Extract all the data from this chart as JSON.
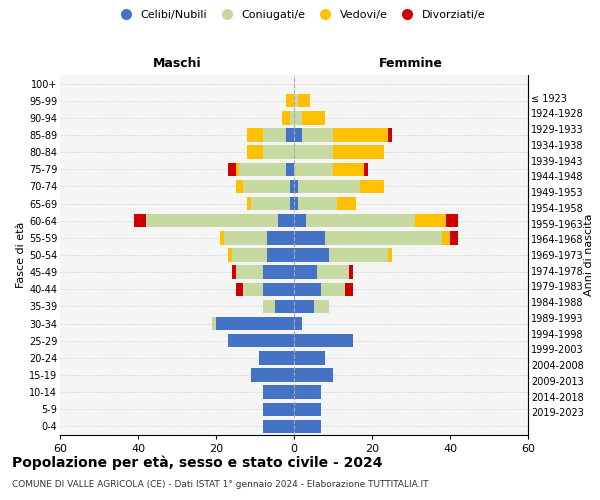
{
  "age_groups": [
    "0-4",
    "5-9",
    "10-14",
    "15-19",
    "20-24",
    "25-29",
    "30-34",
    "35-39",
    "40-44",
    "45-49",
    "50-54",
    "55-59",
    "60-64",
    "65-69",
    "70-74",
    "75-79",
    "80-84",
    "85-89",
    "90-94",
    "95-99",
    "100+"
  ],
  "birth_years": [
    "2019-2023",
    "2014-2018",
    "2009-2013",
    "2004-2008",
    "1999-2003",
    "1994-1998",
    "1989-1993",
    "1984-1988",
    "1979-1983",
    "1974-1978",
    "1969-1973",
    "1964-1968",
    "1959-1963",
    "1954-1958",
    "1949-1953",
    "1944-1948",
    "1939-1943",
    "1934-1938",
    "1929-1933",
    "1924-1928",
    "≤ 1923"
  ],
  "colors": {
    "celibi": "#4472C4",
    "coniugati": "#c5d9a0",
    "vedovi": "#ffc000",
    "divorziati": "#cc0000"
  },
  "males": {
    "celibi": [
      8,
      8,
      8,
      11,
      9,
      17,
      20,
      5,
      8,
      8,
      7,
      7,
      4,
      1,
      1,
      2,
      0,
      2,
      0,
      0,
      0
    ],
    "coniugati": [
      0,
      0,
      0,
      0,
      0,
      0,
      1,
      3,
      5,
      7,
      9,
      11,
      34,
      10,
      12,
      12,
      8,
      6,
      1,
      0,
      0
    ],
    "vedovi": [
      0,
      0,
      0,
      0,
      0,
      0,
      0,
      0,
      0,
      0,
      1,
      1,
      0,
      1,
      2,
      1,
      4,
      4,
      2,
      2,
      0
    ],
    "divorziati": [
      0,
      0,
      0,
      0,
      0,
      0,
      0,
      0,
      2,
      1,
      0,
      0,
      3,
      0,
      0,
      2,
      0,
      0,
      0,
      0,
      0
    ]
  },
  "females": {
    "celibi": [
      7,
      7,
      7,
      10,
      8,
      15,
      2,
      5,
      7,
      6,
      9,
      8,
      3,
      1,
      1,
      0,
      0,
      2,
      0,
      0,
      0
    ],
    "coniugati": [
      0,
      0,
      0,
      0,
      0,
      0,
      0,
      4,
      6,
      8,
      15,
      30,
      28,
      10,
      16,
      10,
      10,
      8,
      2,
      1,
      0
    ],
    "vedovi": [
      0,
      0,
      0,
      0,
      0,
      0,
      0,
      0,
      0,
      0,
      1,
      2,
      8,
      5,
      6,
      8,
      13,
      14,
      6,
      3,
      0
    ],
    "divorziati": [
      0,
      0,
      0,
      0,
      0,
      0,
      0,
      0,
      2,
      1,
      0,
      2,
      3,
      0,
      0,
      1,
      0,
      1,
      0,
      0,
      0
    ]
  },
  "xlim": 60,
  "title": "Popolazione per età, sesso e stato civile - 2024",
  "subtitle": "COMUNE DI VALLE AGRICOLA (CE) - Dati ISTAT 1° gennaio 2024 - Elaborazione TUTTITALIA.IT",
  "ylabel_left": "Fasce di età",
  "ylabel_right": "Anni di nascita",
  "xlabel_maschi": "Maschi",
  "xlabel_femmine": "Femmine",
  "legend_labels": [
    "Celibi/Nubili",
    "Coniugati/e",
    "Vedovi/e",
    "Divorziati/e"
  ]
}
